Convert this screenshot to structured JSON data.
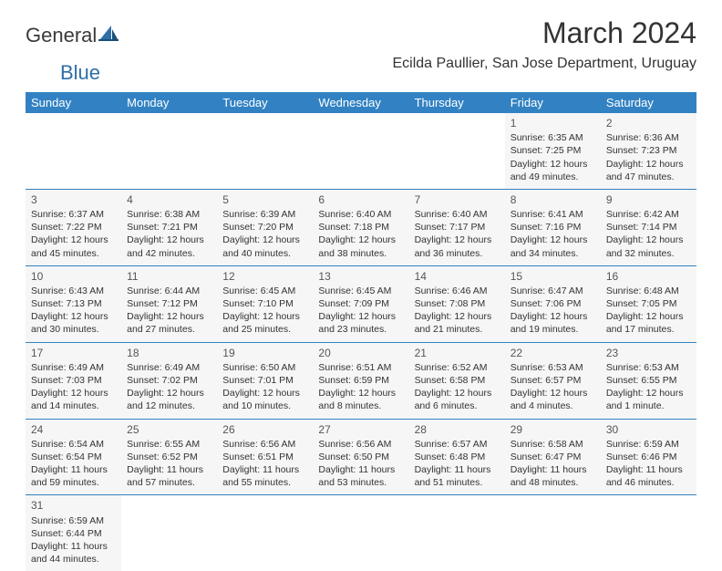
{
  "logo": {
    "part1": "General",
    "part2": "Blue"
  },
  "title": "March 2024",
  "location": "Ecilda Paullier, San Jose Department, Uruguay",
  "colors": {
    "header_bg": "#3282c3",
    "row_border": "#3282c3",
    "cell_bg": "#f6f6f6",
    "page_bg": "#ffffff",
    "text": "#333333"
  },
  "day_headers": [
    "Sunday",
    "Monday",
    "Tuesday",
    "Wednesday",
    "Thursday",
    "Friday",
    "Saturday"
  ],
  "weeks": [
    [
      null,
      null,
      null,
      null,
      null,
      {
        "day": "1",
        "sunrise": "Sunrise: 6:35 AM",
        "sunset": "Sunset: 7:25 PM",
        "daylight": "Daylight: 12 hours and 49 minutes."
      },
      {
        "day": "2",
        "sunrise": "Sunrise: 6:36 AM",
        "sunset": "Sunset: 7:23 PM",
        "daylight": "Daylight: 12 hours and 47 minutes."
      }
    ],
    [
      {
        "day": "3",
        "sunrise": "Sunrise: 6:37 AM",
        "sunset": "Sunset: 7:22 PM",
        "daylight": "Daylight: 12 hours and 45 minutes."
      },
      {
        "day": "4",
        "sunrise": "Sunrise: 6:38 AM",
        "sunset": "Sunset: 7:21 PM",
        "daylight": "Daylight: 12 hours and 42 minutes."
      },
      {
        "day": "5",
        "sunrise": "Sunrise: 6:39 AM",
        "sunset": "Sunset: 7:20 PM",
        "daylight": "Daylight: 12 hours and 40 minutes."
      },
      {
        "day": "6",
        "sunrise": "Sunrise: 6:40 AM",
        "sunset": "Sunset: 7:18 PM",
        "daylight": "Daylight: 12 hours and 38 minutes."
      },
      {
        "day": "7",
        "sunrise": "Sunrise: 6:40 AM",
        "sunset": "Sunset: 7:17 PM",
        "daylight": "Daylight: 12 hours and 36 minutes."
      },
      {
        "day": "8",
        "sunrise": "Sunrise: 6:41 AM",
        "sunset": "Sunset: 7:16 PM",
        "daylight": "Daylight: 12 hours and 34 minutes."
      },
      {
        "day": "9",
        "sunrise": "Sunrise: 6:42 AM",
        "sunset": "Sunset: 7:14 PM",
        "daylight": "Daylight: 12 hours and 32 minutes."
      }
    ],
    [
      {
        "day": "10",
        "sunrise": "Sunrise: 6:43 AM",
        "sunset": "Sunset: 7:13 PM",
        "daylight": "Daylight: 12 hours and 30 minutes."
      },
      {
        "day": "11",
        "sunrise": "Sunrise: 6:44 AM",
        "sunset": "Sunset: 7:12 PM",
        "daylight": "Daylight: 12 hours and 27 minutes."
      },
      {
        "day": "12",
        "sunrise": "Sunrise: 6:45 AM",
        "sunset": "Sunset: 7:10 PM",
        "daylight": "Daylight: 12 hours and 25 minutes."
      },
      {
        "day": "13",
        "sunrise": "Sunrise: 6:45 AM",
        "sunset": "Sunset: 7:09 PM",
        "daylight": "Daylight: 12 hours and 23 minutes."
      },
      {
        "day": "14",
        "sunrise": "Sunrise: 6:46 AM",
        "sunset": "Sunset: 7:08 PM",
        "daylight": "Daylight: 12 hours and 21 minutes."
      },
      {
        "day": "15",
        "sunrise": "Sunrise: 6:47 AM",
        "sunset": "Sunset: 7:06 PM",
        "daylight": "Daylight: 12 hours and 19 minutes."
      },
      {
        "day": "16",
        "sunrise": "Sunrise: 6:48 AM",
        "sunset": "Sunset: 7:05 PM",
        "daylight": "Daylight: 12 hours and 17 minutes."
      }
    ],
    [
      {
        "day": "17",
        "sunrise": "Sunrise: 6:49 AM",
        "sunset": "Sunset: 7:03 PM",
        "daylight": "Daylight: 12 hours and 14 minutes."
      },
      {
        "day": "18",
        "sunrise": "Sunrise: 6:49 AM",
        "sunset": "Sunset: 7:02 PM",
        "daylight": "Daylight: 12 hours and 12 minutes."
      },
      {
        "day": "19",
        "sunrise": "Sunrise: 6:50 AM",
        "sunset": "Sunset: 7:01 PM",
        "daylight": "Daylight: 12 hours and 10 minutes."
      },
      {
        "day": "20",
        "sunrise": "Sunrise: 6:51 AM",
        "sunset": "Sunset: 6:59 PM",
        "daylight": "Daylight: 12 hours and 8 minutes."
      },
      {
        "day": "21",
        "sunrise": "Sunrise: 6:52 AM",
        "sunset": "Sunset: 6:58 PM",
        "daylight": "Daylight: 12 hours and 6 minutes."
      },
      {
        "day": "22",
        "sunrise": "Sunrise: 6:53 AM",
        "sunset": "Sunset: 6:57 PM",
        "daylight": "Daylight: 12 hours and 4 minutes."
      },
      {
        "day": "23",
        "sunrise": "Sunrise: 6:53 AM",
        "sunset": "Sunset: 6:55 PM",
        "daylight": "Daylight: 12 hours and 1 minute."
      }
    ],
    [
      {
        "day": "24",
        "sunrise": "Sunrise: 6:54 AM",
        "sunset": "Sunset: 6:54 PM",
        "daylight": "Daylight: 11 hours and 59 minutes."
      },
      {
        "day": "25",
        "sunrise": "Sunrise: 6:55 AM",
        "sunset": "Sunset: 6:52 PM",
        "daylight": "Daylight: 11 hours and 57 minutes."
      },
      {
        "day": "26",
        "sunrise": "Sunrise: 6:56 AM",
        "sunset": "Sunset: 6:51 PM",
        "daylight": "Daylight: 11 hours and 55 minutes."
      },
      {
        "day": "27",
        "sunrise": "Sunrise: 6:56 AM",
        "sunset": "Sunset: 6:50 PM",
        "daylight": "Daylight: 11 hours and 53 minutes."
      },
      {
        "day": "28",
        "sunrise": "Sunrise: 6:57 AM",
        "sunset": "Sunset: 6:48 PM",
        "daylight": "Daylight: 11 hours and 51 minutes."
      },
      {
        "day": "29",
        "sunrise": "Sunrise: 6:58 AM",
        "sunset": "Sunset: 6:47 PM",
        "daylight": "Daylight: 11 hours and 48 minutes."
      },
      {
        "day": "30",
        "sunrise": "Sunrise: 6:59 AM",
        "sunset": "Sunset: 6:46 PM",
        "daylight": "Daylight: 11 hours and 46 minutes."
      }
    ],
    [
      {
        "day": "31",
        "sunrise": "Sunrise: 6:59 AM",
        "sunset": "Sunset: 6:44 PM",
        "daylight": "Daylight: 11 hours and 44 minutes."
      },
      null,
      null,
      null,
      null,
      null,
      null
    ]
  ]
}
